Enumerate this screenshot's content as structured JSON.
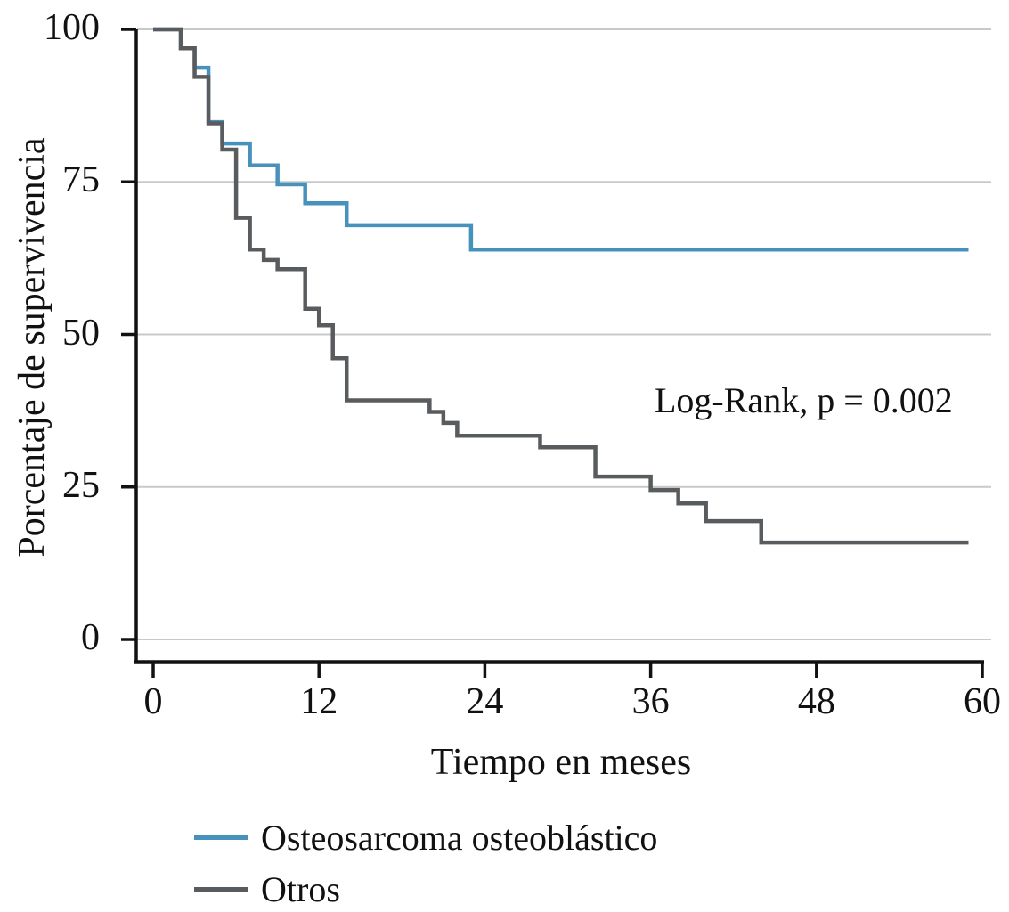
{
  "chart_data": {
    "type": "line",
    "subtype": "kaplan-meier-step-survival",
    "title": "",
    "xlabel": "Tiempo en meses",
    "ylabel": "Porcentaje de supervivencia",
    "xlim": [
      0,
      60
    ],
    "ylim": [
      0,
      100
    ],
    "xticks": [
      0,
      12,
      24,
      36,
      48,
      60
    ],
    "yticks": [
      0,
      25,
      50,
      75,
      100
    ],
    "grid": "horizontal-only",
    "legend_position": "bottom-left",
    "annotation": {
      "text": "Log-Rank, p = 0.002"
    },
    "curve_end_month": 59,
    "series": [
      {
        "name": "Osteosarcoma osteoblástico",
        "color": "#4791bd",
        "steps_month_percent": [
          [
            0,
            100
          ],
          [
            2,
            96.9
          ],
          [
            3,
            93.7
          ],
          [
            4,
            84.8
          ],
          [
            5,
            81.3
          ],
          [
            7,
            77.7
          ],
          [
            9,
            74.6
          ],
          [
            11,
            71.5
          ],
          [
            14,
            67.9
          ],
          [
            23,
            63.9
          ]
        ]
      },
      {
        "name": "Otros",
        "color": "#595c5e",
        "steps_month_percent": [
          [
            0,
            100
          ],
          [
            2,
            96.9
          ],
          [
            3,
            92.2
          ],
          [
            4,
            84.6
          ],
          [
            5,
            80.3
          ],
          [
            6,
            69.1
          ],
          [
            7,
            63.9
          ],
          [
            8,
            62.2
          ],
          [
            9,
            60.7
          ],
          [
            11,
            54.2
          ],
          [
            12,
            51.5
          ],
          [
            13,
            46.1
          ],
          [
            14,
            39.2
          ],
          [
            20,
            37.3
          ],
          [
            21,
            35.5
          ],
          [
            22,
            33.4
          ],
          [
            28,
            31.5
          ],
          [
            32,
            26.7
          ],
          [
            36,
            24.5
          ],
          [
            38,
            22.3
          ],
          [
            40,
            19.4
          ],
          [
            44,
            15.9
          ]
        ]
      }
    ],
    "colors": {
      "axis": "#111111",
      "gridline": "#c9c9c9",
      "text": "#111111"
    }
  }
}
